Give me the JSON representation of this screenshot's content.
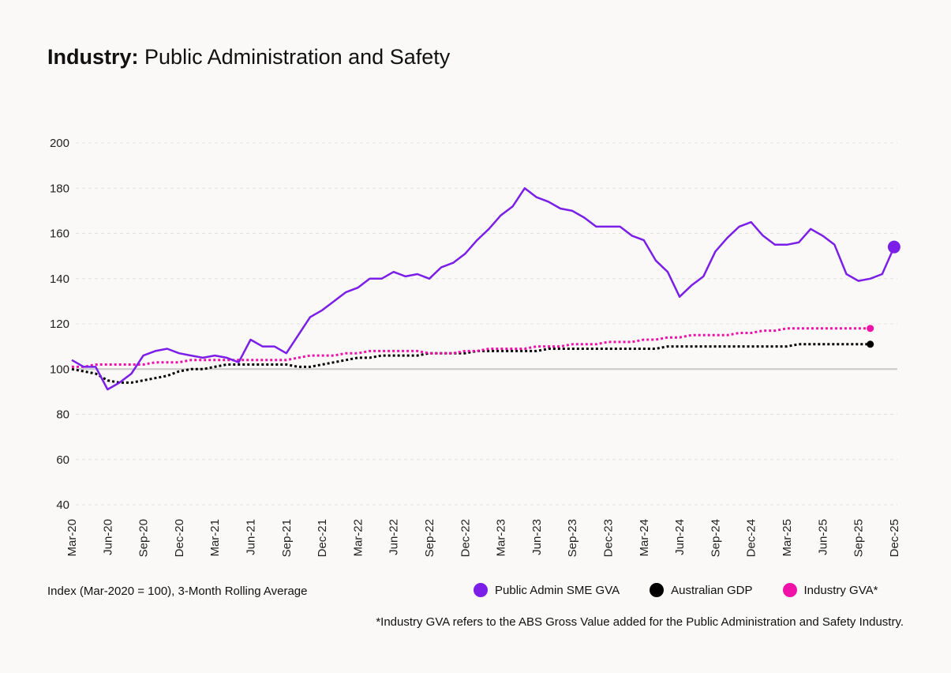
{
  "title": {
    "bold": "Industry:",
    "rest": "Public Administration and Safety"
  },
  "footer": {
    "index_note": "Index (Mar-2020 = 100), 3-Month Rolling Average",
    "footnote": "*Industry GVA refers to the ABS Gross Value added for the Public Administration and Safety Industry."
  },
  "legend": [
    {
      "label": "Public Admin SME GVA",
      "color": "#7b1fe8"
    },
    {
      "label": "Australian GDP",
      "color": "#000000"
    },
    {
      "label": "Industry GVA*",
      "color": "#f012a8"
    }
  ],
  "chart_data": {
    "type": "line",
    "ylim": [
      40,
      200
    ],
    "yticks": [
      40,
      60,
      80,
      100,
      120,
      140,
      160,
      180,
      200
    ],
    "reference_line": 100,
    "grid": "horizontal dashed",
    "x_tick_labels": [
      "Mar-20",
      "Jun-20",
      "Sep-20",
      "Dec-20",
      "Mar-21",
      "Jun-21",
      "Sep-21",
      "Dec-21",
      "Mar-22",
      "Jun-22",
      "Sep-22",
      "Dec-22",
      "Mar-23",
      "Jun-23",
      "Sep-23",
      "Dec-23",
      "Mar-24",
      "Jun-24",
      "Sep-24",
      "Dec-24",
      "Mar-25",
      "Jun-25",
      "Sep-25",
      "Dec-25"
    ],
    "x_start": "Mar-20",
    "series": [
      {
        "name": "Public Admin SME GVA",
        "color": "#7b1fe8",
        "style": "solid",
        "end_marker": true,
        "values": [
          104,
          101,
          101,
          91,
          94,
          98,
          106,
          108,
          109,
          107,
          106,
          105,
          106,
          105,
          103,
          113,
          110,
          110,
          107,
          115,
          123,
          126,
          130,
          134,
          136,
          140,
          140,
          143,
          141,
          142,
          140,
          145,
          147,
          151,
          157,
          162,
          168,
          172,
          180,
          176,
          174,
          171,
          170,
          167,
          163,
          163,
          163,
          159,
          157,
          148,
          143,
          132,
          137,
          141,
          152,
          158,
          163,
          165,
          159,
          155,
          155,
          156,
          162,
          159,
          155,
          142,
          139,
          140,
          142,
          154
        ]
      },
      {
        "name": "Australian GDP",
        "color": "#000000",
        "style": "dotted",
        "end_marker": true,
        "values": [
          100,
          99,
          98,
          95,
          94,
          94,
          95,
          96,
          97,
          99,
          100,
          100,
          101,
          102,
          102,
          102,
          102,
          102,
          102,
          101,
          101,
          102,
          103,
          104,
          105,
          105,
          106,
          106,
          106,
          106,
          107,
          107,
          107,
          107,
          108,
          108,
          108,
          108,
          108,
          108,
          109,
          109,
          109,
          109,
          109,
          109,
          109,
          109,
          109,
          109,
          110,
          110,
          110,
          110,
          110,
          110,
          110,
          110,
          110,
          110,
          110,
          111,
          111,
          111,
          111,
          111,
          111,
          111
        ]
      },
      {
        "name": "Industry GVA*",
        "color": "#f012a8",
        "style": "dotted",
        "end_marker": true,
        "values": [
          101,
          101,
          102,
          102,
          102,
          102,
          102,
          103,
          103,
          103,
          104,
          104,
          104,
          104,
          104,
          104,
          104,
          104,
          104,
          105,
          106,
          106,
          106,
          107,
          107,
          108,
          108,
          108,
          108,
          108,
          107,
          107,
          107,
          108,
          108,
          109,
          109,
          109,
          109,
          110,
          110,
          110,
          111,
          111,
          111,
          112,
          112,
          112,
          113,
          113,
          114,
          114,
          115,
          115,
          115,
          115,
          116,
          116,
          117,
          117,
          118,
          118,
          118,
          118,
          118,
          118,
          118,
          118
        ]
      }
    ]
  }
}
